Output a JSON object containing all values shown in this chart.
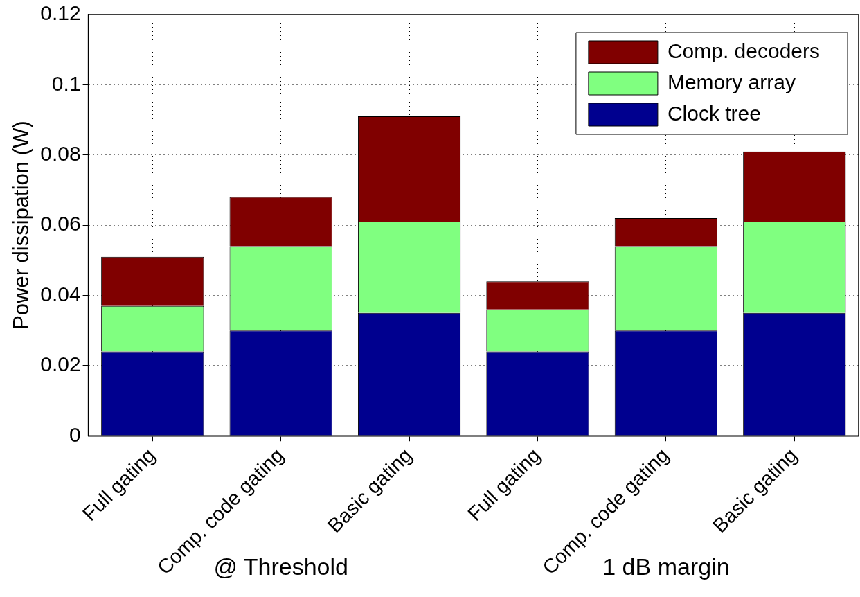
{
  "chart_data": {
    "type": "bar",
    "stacked": true,
    "ylabel": "Power dissipation (W)",
    "categories": [
      "Full gating",
      "Comp. code gating",
      "Basic gating",
      "Full gating",
      "Comp. code gating",
      "Basic gating"
    ],
    "series": [
      {
        "name": "Clock tree",
        "color": "#00008f",
        "values": [
          0.024,
          0.03,
          0.035,
          0.024,
          0.03,
          0.035
        ]
      },
      {
        "name": "Memory array",
        "color": "#80ff80",
        "values": [
          0.013,
          0.024,
          0.026,
          0.012,
          0.024,
          0.026
        ]
      },
      {
        "name": "Comp. decoders",
        "color": "#800000",
        "values": [
          0.014,
          0.014,
          0.03,
          0.008,
          0.008,
          0.02
        ]
      }
    ],
    "ylim": [
      0,
      0.12
    ],
    "yticks": [
      0,
      0.02,
      0.04,
      0.06,
      0.08,
      0.1,
      0.12
    ],
    "grid": true,
    "legend": "top right",
    "annotations": [
      "@ Threshold",
      "1 dB margin"
    ]
  }
}
